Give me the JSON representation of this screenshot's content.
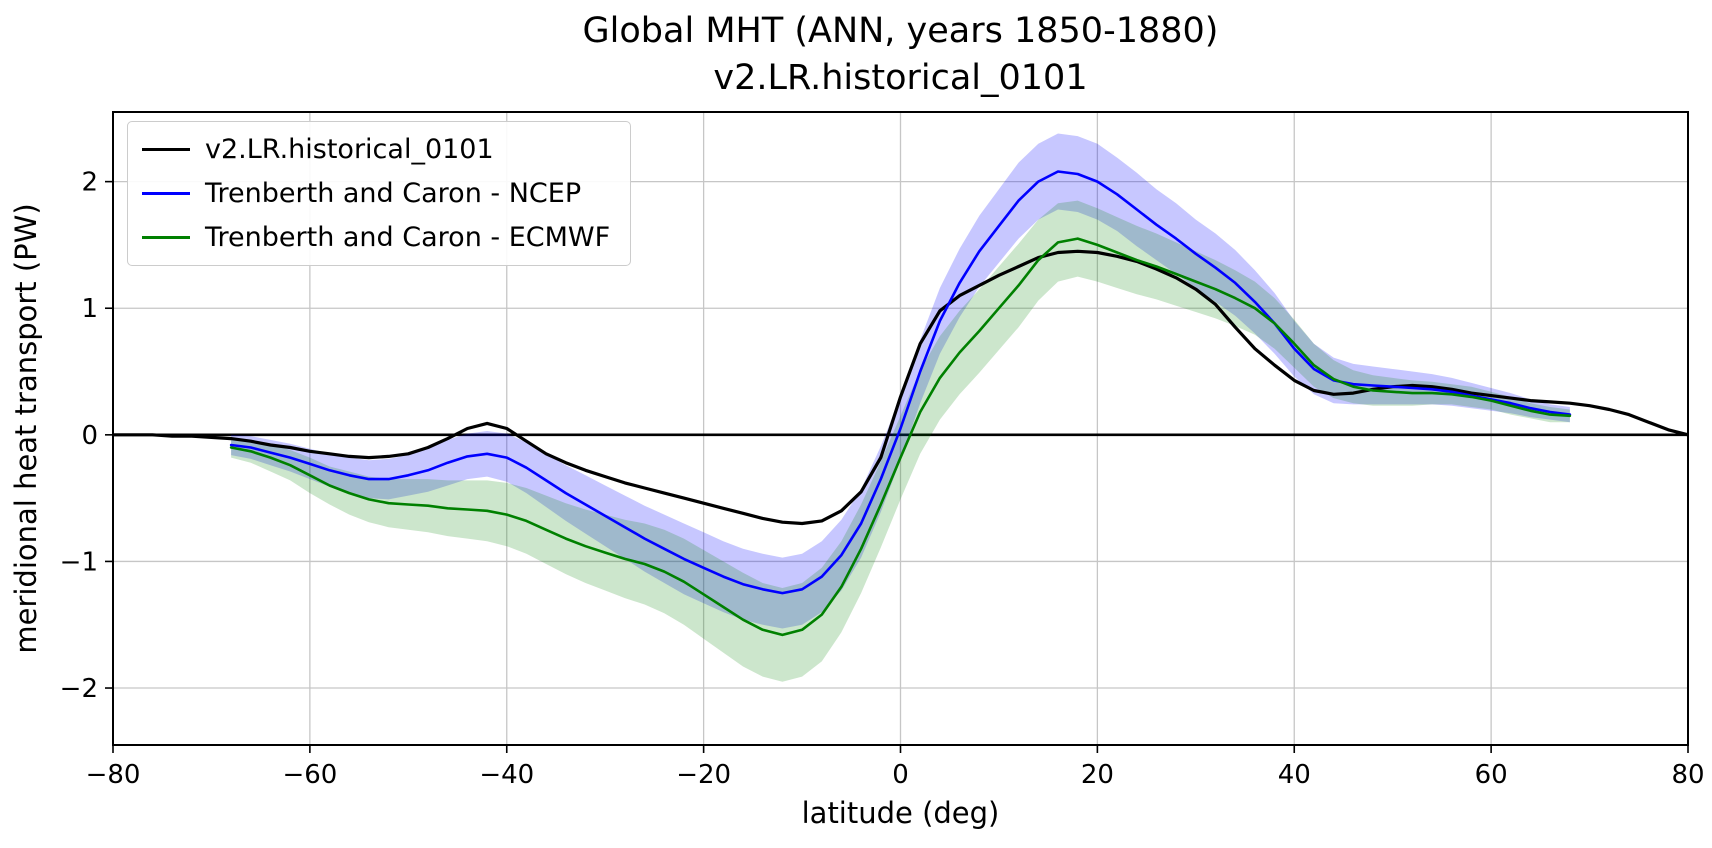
{
  "chart_data": {
    "type": "line",
    "title": "Global MHT (ANN, years 1850-1880)",
    "subtitle": "v2.LR.historical_0101",
    "xlabel": "latitude (deg)",
    "ylabel": "meridional heat transport (PW)",
    "xlim": [
      -80,
      80
    ],
    "ylim": [
      -2.45,
      2.55
    ],
    "xticks": [
      -80,
      -60,
      -40,
      -20,
      0,
      20,
      40,
      60,
      80
    ],
    "yticks": [
      -2,
      -1,
      0,
      1,
      2
    ],
    "grid": true,
    "grid_color": "#c6c6c6",
    "zero_line": true,
    "legend_position": "upper left",
    "series": [
      {
        "name": "v2.LR.historical_0101",
        "color": "#000000",
        "linewidth": 3.2,
        "x": [
          -80,
          -78,
          -76,
          -74,
          -72,
          -70,
          -68,
          -66,
          -64,
          -62,
          -60,
          -58,
          -56,
          -54,
          -52,
          -50,
          -48,
          -46,
          -44,
          -42,
          -40,
          -38,
          -36,
          -34,
          -32,
          -30,
          -28,
          -26,
          -24,
          -22,
          -20,
          -18,
          -16,
          -14,
          -12,
          -10,
          -8,
          -6,
          -4,
          -2,
          0,
          2,
          4,
          6,
          8,
          10,
          12,
          14,
          16,
          18,
          20,
          22,
          24,
          26,
          28,
          30,
          32,
          34,
          36,
          38,
          40,
          42,
          44,
          46,
          48,
          50,
          52,
          54,
          56,
          58,
          60,
          62,
          64,
          66,
          68,
          70,
          72,
          74,
          76,
          78,
          80
        ],
        "y": [
          0.0,
          0.0,
          0.0,
          -0.01,
          -0.01,
          -0.02,
          -0.03,
          -0.05,
          -0.08,
          -0.1,
          -0.13,
          -0.15,
          -0.17,
          -0.18,
          -0.17,
          -0.15,
          -0.1,
          -0.03,
          0.05,
          0.09,
          0.05,
          -0.05,
          -0.15,
          -0.22,
          -0.28,
          -0.33,
          -0.38,
          -0.42,
          -0.46,
          -0.5,
          -0.54,
          -0.58,
          -0.62,
          -0.66,
          -0.69,
          -0.7,
          -0.68,
          -0.6,
          -0.45,
          -0.18,
          0.3,
          0.72,
          0.98,
          1.1,
          1.18,
          1.26,
          1.33,
          1.4,
          1.44,
          1.45,
          1.44,
          1.41,
          1.37,
          1.31,
          1.24,
          1.15,
          1.03,
          0.85,
          0.68,
          0.55,
          0.43,
          0.35,
          0.32,
          0.33,
          0.36,
          0.38,
          0.39,
          0.38,
          0.36,
          0.33,
          0.31,
          0.29,
          0.27,
          0.26,
          0.25,
          0.23,
          0.2,
          0.16,
          0.1,
          0.04,
          0.0
        ]
      },
      {
        "name": "Trenberth and Caron - NCEP",
        "color": "#0000ff",
        "linewidth": 2.6,
        "band_color": "#0000ff",
        "band_opacity": 0.22,
        "x": [
          -68,
          -66,
          -64,
          -62,
          -60,
          -58,
          -56,
          -54,
          -52,
          -50,
          -48,
          -46,
          -44,
          -42,
          -40,
          -38,
          -36,
          -34,
          -32,
          -30,
          -28,
          -26,
          -24,
          -22,
          -20,
          -18,
          -16,
          -14,
          -12,
          -10,
          -8,
          -6,
          -4,
          -2,
          0,
          2,
          4,
          6,
          8,
          10,
          12,
          14,
          16,
          18,
          20,
          22,
          24,
          26,
          28,
          30,
          32,
          34,
          36,
          38,
          40,
          42,
          44,
          46,
          48,
          50,
          52,
          54,
          56,
          58,
          60,
          62,
          64,
          66,
          68
        ],
        "y": [
          -0.08,
          -0.1,
          -0.14,
          -0.18,
          -0.23,
          -0.28,
          -0.32,
          -0.35,
          -0.35,
          -0.32,
          -0.28,
          -0.22,
          -0.17,
          -0.15,
          -0.18,
          -0.26,
          -0.36,
          -0.46,
          -0.55,
          -0.64,
          -0.73,
          -0.82,
          -0.9,
          -0.98,
          -1.05,
          -1.12,
          -1.18,
          -1.22,
          -1.25,
          -1.22,
          -1.12,
          -0.95,
          -0.7,
          -0.35,
          0.05,
          0.5,
          0.9,
          1.2,
          1.45,
          1.65,
          1.85,
          2.0,
          2.08,
          2.06,
          2.0,
          1.9,
          1.78,
          1.66,
          1.55,
          1.43,
          1.32,
          1.2,
          1.05,
          0.88,
          0.68,
          0.52,
          0.43,
          0.4,
          0.39,
          0.38,
          0.37,
          0.36,
          0.34,
          0.31,
          0.28,
          0.25,
          0.21,
          0.18,
          0.16
        ],
        "band_halfwidth": [
          0.08,
          0.09,
          0.1,
          0.11,
          0.12,
          0.13,
          0.14,
          0.15,
          0.16,
          0.16,
          0.17,
          0.18,
          0.18,
          0.18,
          0.19,
          0.2,
          0.21,
          0.22,
          0.23,
          0.24,
          0.25,
          0.26,
          0.27,
          0.28,
          0.28,
          0.28,
          0.28,
          0.28,
          0.28,
          0.28,
          0.28,
          0.28,
          0.27,
          0.26,
          0.25,
          0.25,
          0.26,
          0.27,
          0.28,
          0.29,
          0.3,
          0.3,
          0.3,
          0.3,
          0.3,
          0.29,
          0.29,
          0.28,
          0.28,
          0.27,
          0.27,
          0.26,
          0.25,
          0.24,
          0.22,
          0.2,
          0.18,
          0.16,
          0.15,
          0.14,
          0.13,
          0.12,
          0.11,
          0.1,
          0.09,
          0.08,
          0.07,
          0.06,
          0.06
        ]
      },
      {
        "name": "Trenberth and Caron - ECMWF",
        "color": "#008000",
        "linewidth": 2.6,
        "band_color": "#008000",
        "band_opacity": 0.2,
        "x": [
          -68,
          -66,
          -64,
          -62,
          -60,
          -58,
          -56,
          -54,
          -52,
          -50,
          -48,
          -46,
          -44,
          -42,
          -40,
          -38,
          -36,
          -34,
          -32,
          -30,
          -28,
          -26,
          -24,
          -22,
          -20,
          -18,
          -16,
          -14,
          -12,
          -10,
          -8,
          -6,
          -4,
          -2,
          0,
          2,
          4,
          6,
          8,
          10,
          12,
          14,
          16,
          18,
          20,
          22,
          24,
          26,
          28,
          30,
          32,
          34,
          36,
          38,
          40,
          42,
          44,
          46,
          48,
          50,
          52,
          54,
          56,
          58,
          60,
          62,
          64,
          66,
          68
        ],
        "y": [
          -0.1,
          -0.13,
          -0.18,
          -0.24,
          -0.32,
          -0.4,
          -0.46,
          -0.51,
          -0.54,
          -0.55,
          -0.56,
          -0.58,
          -0.59,
          -0.6,
          -0.63,
          -0.68,
          -0.75,
          -0.82,
          -0.88,
          -0.93,
          -0.98,
          -1.02,
          -1.08,
          -1.16,
          -1.26,
          -1.36,
          -1.46,
          -1.54,
          -1.58,
          -1.54,
          -1.42,
          -1.2,
          -0.9,
          -0.55,
          -0.18,
          0.18,
          0.45,
          0.65,
          0.82,
          1.0,
          1.18,
          1.38,
          1.52,
          1.55,
          1.5,
          1.44,
          1.38,
          1.33,
          1.27,
          1.21,
          1.15,
          1.08,
          1.0,
          0.88,
          0.72,
          0.55,
          0.44,
          0.38,
          0.35,
          0.34,
          0.33,
          0.33,
          0.32,
          0.3,
          0.27,
          0.23,
          0.19,
          0.16,
          0.15
        ],
        "band_halfwidth": [
          0.08,
          0.09,
          0.11,
          0.12,
          0.14,
          0.15,
          0.17,
          0.18,
          0.19,
          0.2,
          0.21,
          0.22,
          0.23,
          0.24,
          0.25,
          0.26,
          0.27,
          0.28,
          0.29,
          0.3,
          0.31,
          0.32,
          0.33,
          0.34,
          0.35,
          0.36,
          0.37,
          0.37,
          0.37,
          0.37,
          0.37,
          0.36,
          0.35,
          0.34,
          0.33,
          0.33,
          0.33,
          0.33,
          0.33,
          0.33,
          0.33,
          0.32,
          0.31,
          0.3,
          0.29,
          0.28,
          0.27,
          0.26,
          0.25,
          0.24,
          0.23,
          0.22,
          0.21,
          0.2,
          0.19,
          0.17,
          0.15,
          0.13,
          0.12,
          0.11,
          0.1,
          0.09,
          0.08,
          0.08,
          0.07,
          0.07,
          0.06,
          0.06,
          0.05
        ]
      }
    ]
  }
}
